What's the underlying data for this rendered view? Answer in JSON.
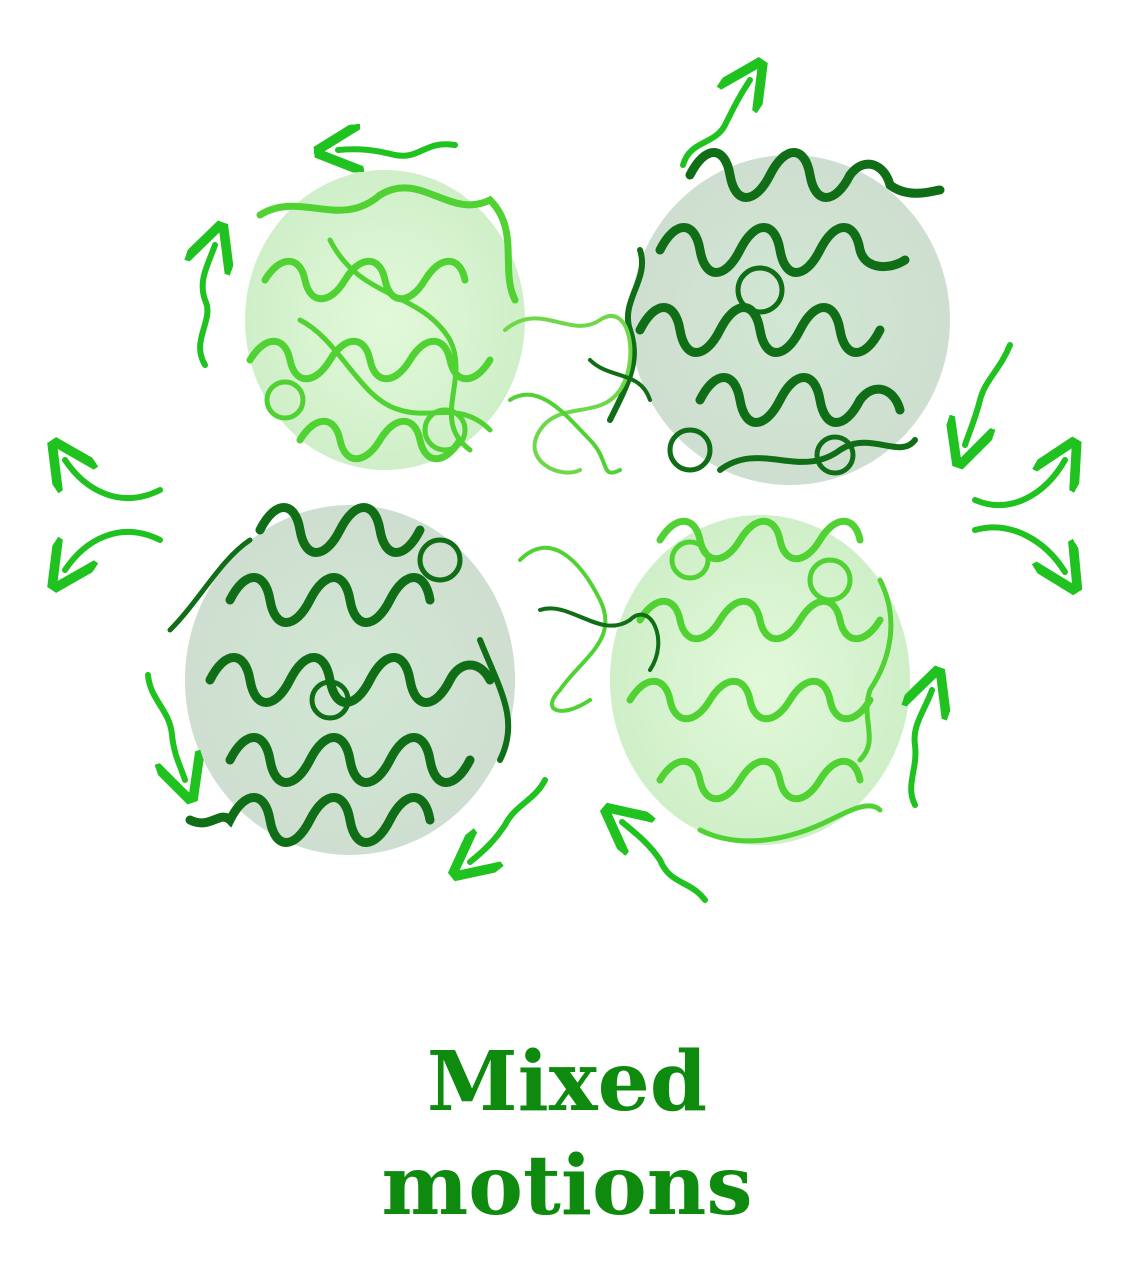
{
  "caption": {
    "line1": "Mixed",
    "line2": "motions"
  },
  "colors": {
    "light_subunit": "#4fd232",
    "dark_subunit": "#0f6e16",
    "arrow": "#1fc21f",
    "caption": "#0e8a0e"
  },
  "icons": {
    "motion_arrows": "curved-arrow-icon",
    "protein": "protein-ribbon-illustration"
  }
}
